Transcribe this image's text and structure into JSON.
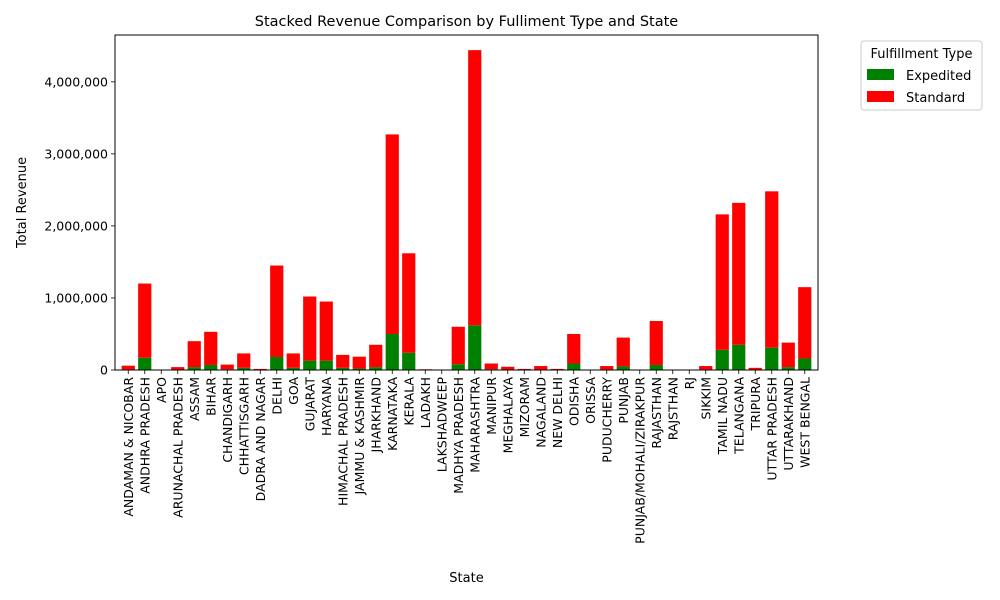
{
  "chart_data": {
    "type": "bar",
    "stacked": true,
    "title": "Stacked Revenue Comparison by Fulliment Type and State",
    "xlabel": "State",
    "ylabel": "Total Revenue",
    "ylim": [
      0,
      4650000
    ],
    "yticks": [
      0,
      1000000,
      2000000,
      3000000,
      4000000
    ],
    "ytick_labels": [
      "0",
      "1,000,000",
      "2,000,000",
      "3,000,000",
      "4,000,000"
    ],
    "grid": false,
    "legend": {
      "title": "Fulfillment Type",
      "placement": "outside-top-right"
    },
    "categories": [
      "ANDAMAN & NICOBAR",
      "ANDHRA PRADESH",
      "APO",
      "ARUNACHAL PRADESH",
      "ASSAM",
      "BIHAR",
      "CHANDIGARH",
      "CHHATTISGARH",
      "DADRA AND NAGAR",
      "DELHI",
      "GOA",
      "GUJARAT",
      "HARYANA",
      "HIMACHAL PRADESH",
      "JAMMU & KASHMIR",
      "JHARKHAND",
      "KARNATAKA",
      "KERALA",
      "LADAKH",
      "LAKSHADWEEP",
      "MADHYA PRADESH",
      "MAHARASHTRA",
      "MANIPUR",
      "MEGHALAYA",
      "MIZORAM",
      "NAGALAND",
      "NEW DELHI",
      "ODISHA",
      "ORISSA",
      "PUDUCHERRY",
      "PUNJAB",
      "PUNJAB/MOHALI/ZIRAKPUR",
      "RAJASTHAN",
      "RAJSTHAN",
      "RJ",
      "SIKKIM",
      "TAMIL NADU",
      "TELANGANA",
      "TRIPURA",
      "UTTAR PRADESH",
      "UTTARAKHAND",
      "WEST BENGAL"
    ],
    "series": [
      {
        "name": "Expedited",
        "color": "#008000",
        "values": [
          8000,
          170000,
          0,
          5000,
          40000,
          70000,
          10000,
          30000,
          2000,
          180000,
          30000,
          130000,
          130000,
          30000,
          20000,
          40000,
          500000,
          240000,
          1000,
          0,
          80000,
          620000,
          10000,
          5000,
          2000,
          6000,
          2000,
          90000,
          0,
          8000,
          50000,
          0,
          70000,
          0,
          0,
          8000,
          280000,
          350000,
          5000,
          310000,
          40000,
          160000
        ]
      },
      {
        "name": "Standard",
        "color": "#ff0000",
        "values": [
          52000,
          1030000,
          0,
          35000,
          360000,
          460000,
          65000,
          200000,
          13000,
          1270000,
          200000,
          890000,
          820000,
          180000,
          165000,
          310000,
          2770000,
          1380000,
          9000,
          3000,
          520000,
          3820000,
          80000,
          40000,
          13000,
          49000,
          13000,
          410000,
          1000,
          47000,
          400000,
          2000,
          610000,
          1000,
          1000,
          47000,
          1880000,
          1970000,
          25000,
          2170000,
          340000,
          990000
        ]
      }
    ]
  }
}
